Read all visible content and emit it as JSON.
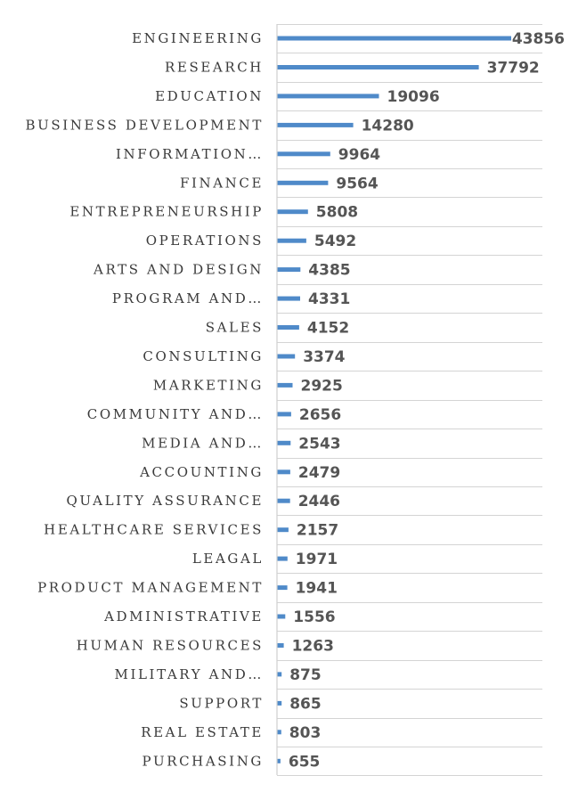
{
  "chart_data": {
    "type": "bar",
    "orientation": "horizontal",
    "categories": [
      "ENGINEERING",
      "RESEARCH",
      "EDUCATION",
      "BUSINESS DEVELOPMENT",
      "INFORMATION…",
      "FINANCE",
      "ENTREPRENEURSHIP",
      "OPERATIONS",
      "ARTS AND DESIGN",
      "PROGRAM AND…",
      "SALES",
      "CONSULTING",
      "MARKETING",
      "COMMUNITY AND…",
      "MEDIA AND…",
      "ACCOUNTING",
      "QUALITY ASSURANCE",
      "HEALTHCARE SERVICES",
      "LEAGAL",
      "PRODUCT MANAGEMENT",
      "ADMINISTRATIVE",
      "HUMAN RESOURCES",
      "MILITARY AND…",
      "SUPPORT",
      "REAL ESTATE",
      "PURCHASING"
    ],
    "values": [
      43856,
      37792,
      19096,
      14280,
      9964,
      9564,
      5808,
      5492,
      4385,
      4331,
      4152,
      3374,
      2925,
      2656,
      2543,
      2479,
      2446,
      2157,
      1971,
      1941,
      1556,
      1263,
      875,
      865,
      803,
      655
    ],
    "title": "",
    "xlabel": "",
    "ylabel": "",
    "xlim": [
      0,
      43856
    ],
    "grid": true,
    "legend": "none",
    "data_labels": true,
    "bar_color": "#4f8ac9"
  }
}
